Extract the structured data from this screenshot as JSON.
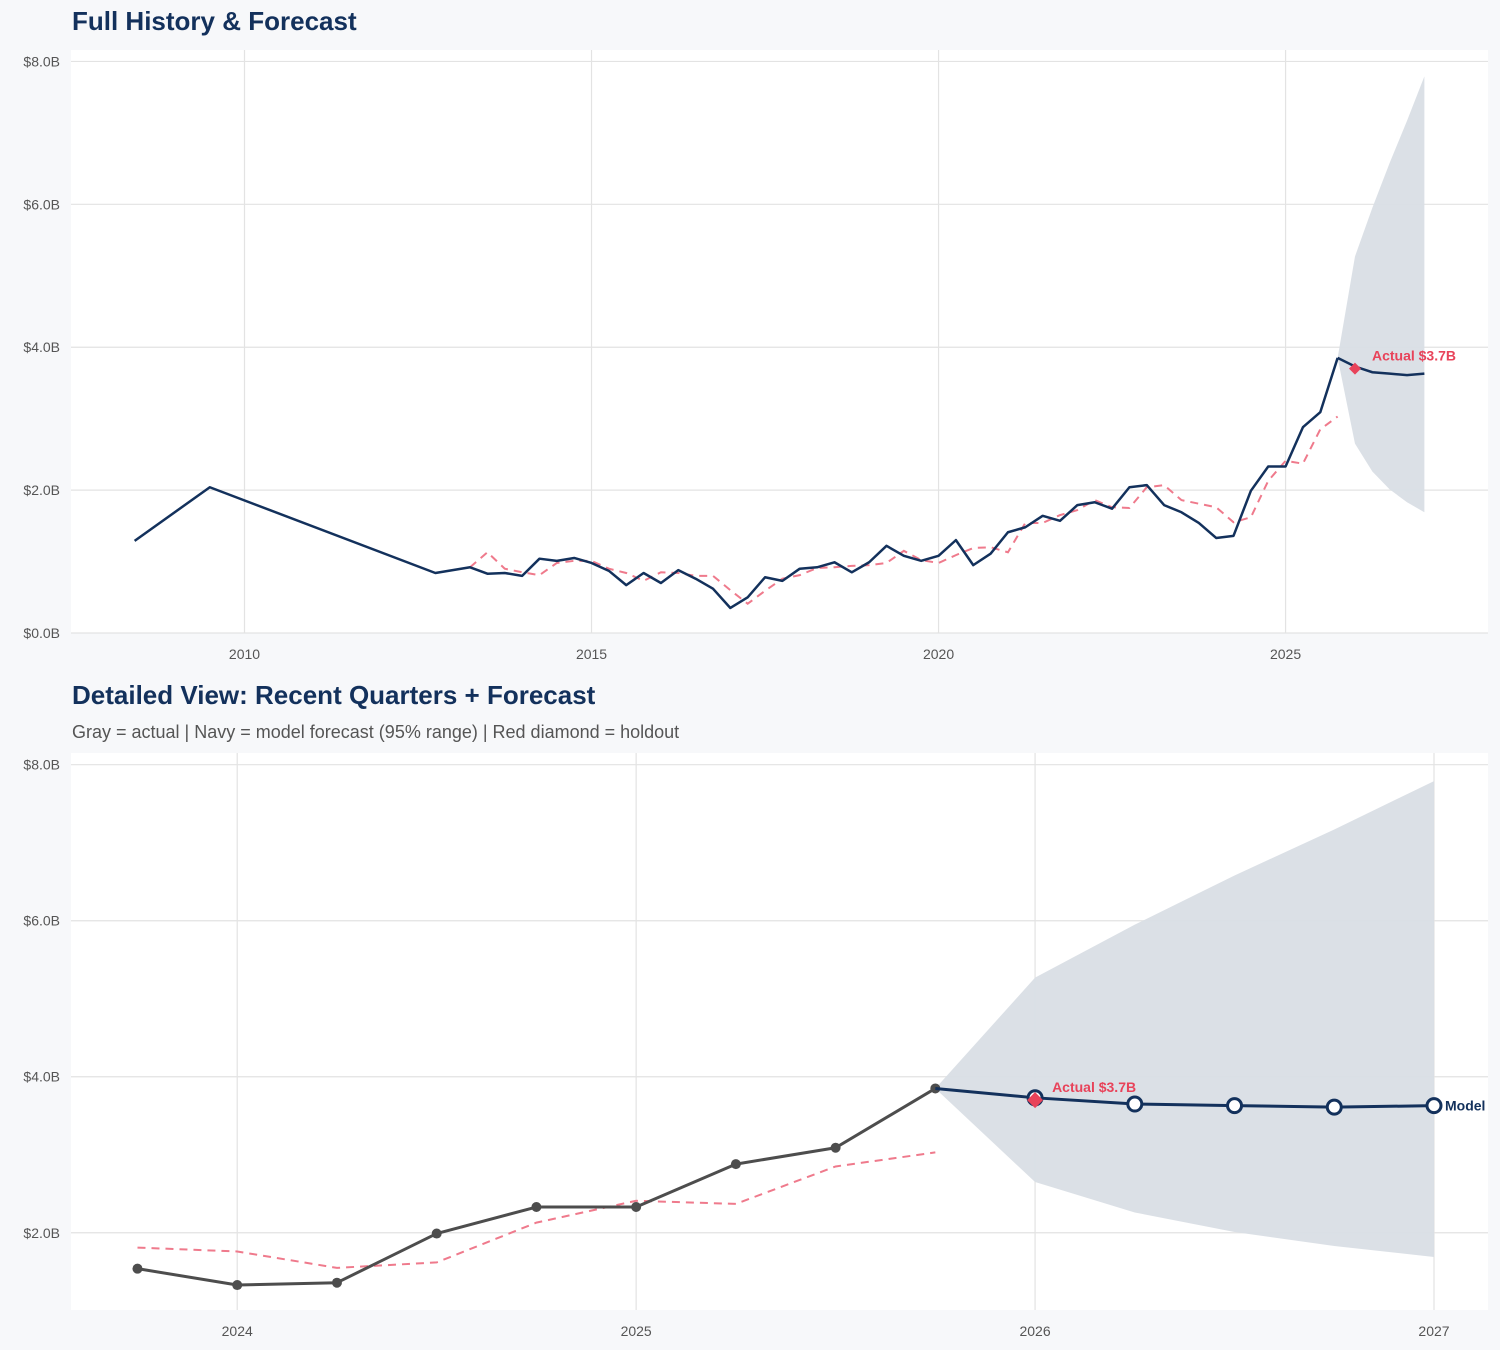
{
  "colors": {
    "navy": "#13315c",
    "red": "#e8435a",
    "gray": "#4d4d4d",
    "band": "#d9dee5",
    "dashed": "#ef7a8c"
  },
  "chart_data": [
    {
      "type": "line",
      "title": "Full History & Forecast",
      "xlim": [
        "2007-07-01",
        "2027-12-01"
      ],
      "ylim": [
        0,
        8.16
      ],
      "yticks": [
        0,
        2,
        4,
        6,
        8
      ],
      "ytick_labels": [
        "$0.0B",
        "$2.0B",
        "$4.0B",
        "$6.0B",
        "$8.0B"
      ],
      "xticks": [
        "2010",
        "2015",
        "2020",
        "2025"
      ],
      "grid": true,
      "series": {
        "actual": {
          "x": [
            "2008-06-01",
            "2009-07-01",
            "2012-10-01",
            "2013-04-01",
            "2013-07-01",
            "2013-10-01",
            "2014-01-01",
            "2014-04-01",
            "2014-07-01",
            "2014-10-01",
            "2015-01-01",
            "2015-04-01",
            "2015-07-01",
            "2015-10-01",
            "2016-01-01",
            "2016-04-01",
            "2016-07-01",
            "2016-10-01",
            "2017-01-01",
            "2017-04-01",
            "2017-07-01",
            "2017-10-01",
            "2018-01-01",
            "2018-04-01",
            "2018-07-01",
            "2018-10-01",
            "2019-01-01",
            "2019-04-01",
            "2019-07-01",
            "2019-10-01",
            "2020-01-01",
            "2020-04-01",
            "2020-07-01",
            "2020-10-01",
            "2021-01-01",
            "2021-04-01",
            "2021-07-01",
            "2021-10-01",
            "2022-01-01",
            "2022-04-01",
            "2022-07-01",
            "2022-10-01",
            "2023-01-01",
            "2023-04-01",
            "2023-07-01",
            "2023-10-01",
            "2024-01-01",
            "2024-04-01",
            "2024-07-01",
            "2024-10-01",
            "2025-01-01",
            "2025-04-01",
            "2025-07-01",
            "2025-10-01"
          ],
          "y": [
            1.29,
            2.04,
            0.84,
            0.92,
            0.83,
            0.84,
            0.8,
            1.04,
            1.01,
            1.05,
            0.98,
            0.87,
            0.67,
            0.84,
            0.7,
            0.88,
            0.76,
            0.62,
            0.35,
            0.5,
            0.78,
            0.73,
            0.9,
            0.92,
            0.99,
            0.85,
            0.99,
            1.22,
            1.08,
            1.01,
            1.08,
            1.3,
            0.95,
            1.11,
            1.41,
            1.48,
            1.64,
            1.57,
            1.79,
            1.83,
            1.74,
            2.04,
            2.07,
            1.79,
            1.69,
            1.54,
            1.33,
            1.36,
            1.99,
            2.33,
            2.33,
            2.88,
            3.09,
            3.85
          ]
        },
        "fitted": {
          "x": [
            "2013-04-01",
            "2013-07-01",
            "2013-10-01",
            "2014-01-01",
            "2014-04-01",
            "2014-07-01",
            "2014-10-01",
            "2015-01-01",
            "2015-04-01",
            "2015-07-01",
            "2015-10-01",
            "2016-01-01",
            "2016-04-01",
            "2016-07-01",
            "2016-10-01",
            "2017-01-01",
            "2017-04-01",
            "2017-07-01",
            "2017-10-01",
            "2018-01-01",
            "2018-04-01",
            "2018-07-01",
            "2018-10-01",
            "2019-01-01",
            "2019-04-01",
            "2019-07-01",
            "2019-10-01",
            "2020-01-01",
            "2020-04-01",
            "2020-07-01",
            "2020-10-01",
            "2021-01-01",
            "2021-04-01",
            "2021-07-01",
            "2021-10-01",
            "2022-01-01",
            "2022-04-01",
            "2022-07-01",
            "2022-10-01",
            "2023-01-01",
            "2023-04-01",
            "2023-07-01",
            "2023-10-01",
            "2024-01-01",
            "2024-04-01",
            "2024-07-01",
            "2024-10-01",
            "2025-01-01",
            "2025-04-01",
            "2025-07-01",
            "2025-10-01"
          ],
          "y": [
            0.92,
            1.13,
            0.9,
            0.85,
            0.81,
            0.98,
            1.01,
            1.01,
            0.9,
            0.84,
            0.73,
            0.85,
            0.84,
            0.8,
            0.8,
            0.6,
            0.41,
            0.59,
            0.76,
            0.81,
            0.91,
            0.92,
            0.94,
            0.95,
            0.98,
            1.15,
            1.02,
            0.98,
            1.09,
            1.19,
            1.2,
            1.13,
            1.54,
            1.54,
            1.65,
            1.72,
            1.86,
            1.76,
            1.75,
            2.04,
            2.07,
            1.86,
            1.81,
            1.76,
            1.55,
            1.62,
            2.13,
            2.41,
            2.37,
            2.85,
            3.03
          ]
        },
        "forecast": {
          "x": [
            "2025-10-01",
            "2026-01-01",
            "2026-04-01",
            "2026-07-01",
            "2026-10-01",
            "2027-01-01"
          ],
          "y": [
            3.85,
            3.73,
            3.65,
            3.63,
            3.61,
            3.63
          ],
          "lower": [
            3.85,
            2.65,
            2.26,
            2.01,
            1.83,
            1.69
          ],
          "upper": [
            3.85,
            5.27,
            5.95,
            6.58,
            7.17,
            7.79
          ]
        },
        "holdout": {
          "x": "2026-01-01",
          "y": 3.7,
          "label": "Actual $3.7B"
        }
      }
    },
    {
      "type": "line",
      "title": "Detailed View: Recent Quarters + Forecast",
      "subtitle": "Gray = actual  |  Navy = model forecast (95% range)  |  Red diamond = holdout",
      "xlim": [
        "2023-08-01",
        "2027-02-20"
      ],
      "ylim": [
        1.01,
        8.15
      ],
      "yticks": [
        2,
        4,
        6,
        8
      ],
      "ytick_labels": [
        "$2.0B",
        "$4.0B",
        "$6.0B",
        "$8.0B"
      ],
      "xticks": [
        "2024",
        "2025",
        "2026",
        "2027"
      ],
      "grid": true,
      "series": {
        "actual": {
          "x": [
            "2023-10-01",
            "2024-01-01",
            "2024-04-01",
            "2024-07-01",
            "2024-10-01",
            "2025-01-01",
            "2025-04-01",
            "2025-07-01",
            "2025-10-01"
          ],
          "y": [
            1.54,
            1.33,
            1.36,
            1.99,
            2.33,
            2.33,
            2.88,
            3.09,
            3.85
          ]
        },
        "fitted": {
          "x": [
            "2023-10-01",
            "2024-01-01",
            "2024-04-01",
            "2024-07-01",
            "2024-10-01",
            "2025-01-01",
            "2025-04-01",
            "2025-07-01",
            "2025-10-01"
          ],
          "y": [
            1.81,
            1.76,
            1.55,
            1.62,
            2.13,
            2.41,
            2.37,
            2.85,
            3.03
          ]
        },
        "forecast": {
          "name": "Model",
          "x": [
            "2025-10-01",
            "2026-01-01",
            "2026-04-01",
            "2026-07-01",
            "2026-10-01",
            "2027-01-01"
          ],
          "y": [
            3.85,
            3.73,
            3.65,
            3.63,
            3.61,
            3.63
          ],
          "lower": [
            3.85,
            2.65,
            2.26,
            2.01,
            1.83,
            1.69
          ],
          "upper": [
            3.85,
            5.27,
            5.95,
            6.58,
            7.17,
            7.79
          ]
        },
        "holdout": {
          "x": "2026-01-01",
          "y": 3.7,
          "label": "Actual $3.7B"
        }
      }
    }
  ]
}
